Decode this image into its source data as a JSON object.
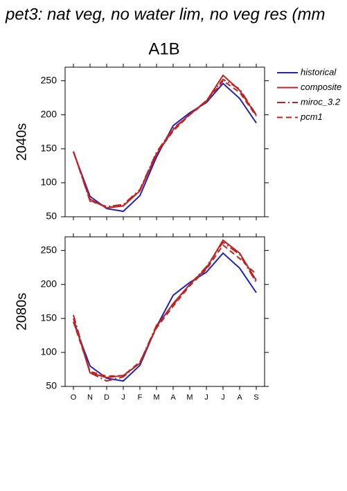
{
  "chart_data": [
    {
      "type": "line",
      "title": "pet3: nat veg, no water lim, no veg res (mm",
      "subtitle": "A1B",
      "panel_label": "2040s",
      "ylim": [
        50,
        270
      ],
      "yticks": [
        50,
        100,
        150,
        200,
        250
      ],
      "series": [
        {
          "name": "historical",
          "color": "#2222bb",
          "dash": "none",
          "values": [
            145,
            80,
            62,
            58,
            81,
            138,
            184,
            203,
            218,
            246,
            224,
            188
          ]
        },
        {
          "name": "composite",
          "color": "#c02222",
          "dash": "none",
          "values": [
            146,
            76,
            63,
            66,
            88,
            142,
            178,
            201,
            220,
            258,
            236,
            199
          ]
        },
        {
          "name": "miroc_3.2",
          "color": "#c02222",
          "dash": "12,4,2,4",
          "values": [
            146,
            73,
            65,
            68,
            90,
            145,
            180,
            200,
            221,
            252,
            238,
            200
          ]
        },
        {
          "name": "pcm1",
          "color": "#c02222",
          "dash": "8,5",
          "values": [
            146,
            74,
            64,
            66,
            89,
            143,
            176,
            200,
            219,
            250,
            233,
            198
          ]
        }
      ]
    },
    {
      "type": "line",
      "panel_label": "2080s",
      "categories": [
        "O",
        "N",
        "D",
        "J",
        "F",
        "M",
        "A",
        "M",
        "J",
        "J",
        "A",
        "S"
      ],
      "ylim": [
        50,
        270
      ],
      "yticks": [
        50,
        100,
        150,
        200,
        250
      ],
      "series": [
        {
          "color": "#2222bb",
          "dash": "none",
          "values": [
            145,
            80,
            62,
            58,
            81,
            138,
            184,
            203,
            218,
            246,
            224,
            188
          ]
        },
        {
          "color": "#c02222",
          "dash": "none",
          "values": [
            150,
            70,
            63,
            66,
            84,
            138,
            172,
            200,
            224,
            265,
            246,
            206
          ]
        },
        {
          "color": "#c02222",
          "dash": "12,4,2,4",
          "values": [
            155,
            70,
            58,
            64,
            85,
            140,
            170,
            200,
            226,
            262,
            244,
            203
          ]
        },
        {
          "color": "#c02222",
          "dash": "8,5",
          "values": [
            145,
            72,
            65,
            66,
            86,
            136,
            168,
            198,
            222,
            258,
            238,
            215
          ]
        }
      ]
    }
  ]
}
